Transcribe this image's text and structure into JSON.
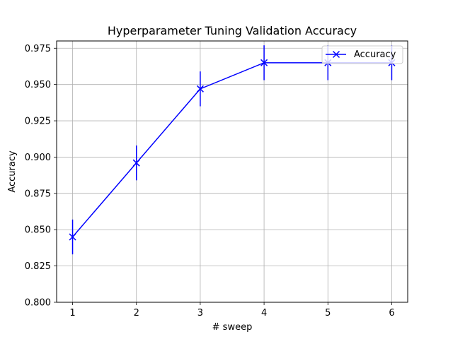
{
  "chart_data": {
    "type": "line",
    "title": "Hyperparameter Tuning Validation Accuracy",
    "xlabel": "# sweep",
    "ylabel": "Accuracy",
    "x": [
      1,
      2,
      3,
      4,
      5,
      6
    ],
    "x_ticks": [
      "1",
      "2",
      "3",
      "4",
      "5",
      "6"
    ],
    "xlim": [
      0.75,
      6.25
    ],
    "ylim": [
      0.8,
      0.98
    ],
    "y_ticks": [
      "0.800",
      "0.825",
      "0.850",
      "0.875",
      "0.900",
      "0.925",
      "0.950",
      "0.975"
    ],
    "grid": true,
    "legend_position": "top-right",
    "series": [
      {
        "name": "Accuracy",
        "color": "#0000ff",
        "marker": "x",
        "values": [
          0.845,
          0.896,
          0.947,
          0.965,
          0.965,
          0.965
        ],
        "error": [
          0.012,
          0.012,
          0.012,
          0.012,
          0.012,
          0.012
        ]
      }
    ]
  }
}
